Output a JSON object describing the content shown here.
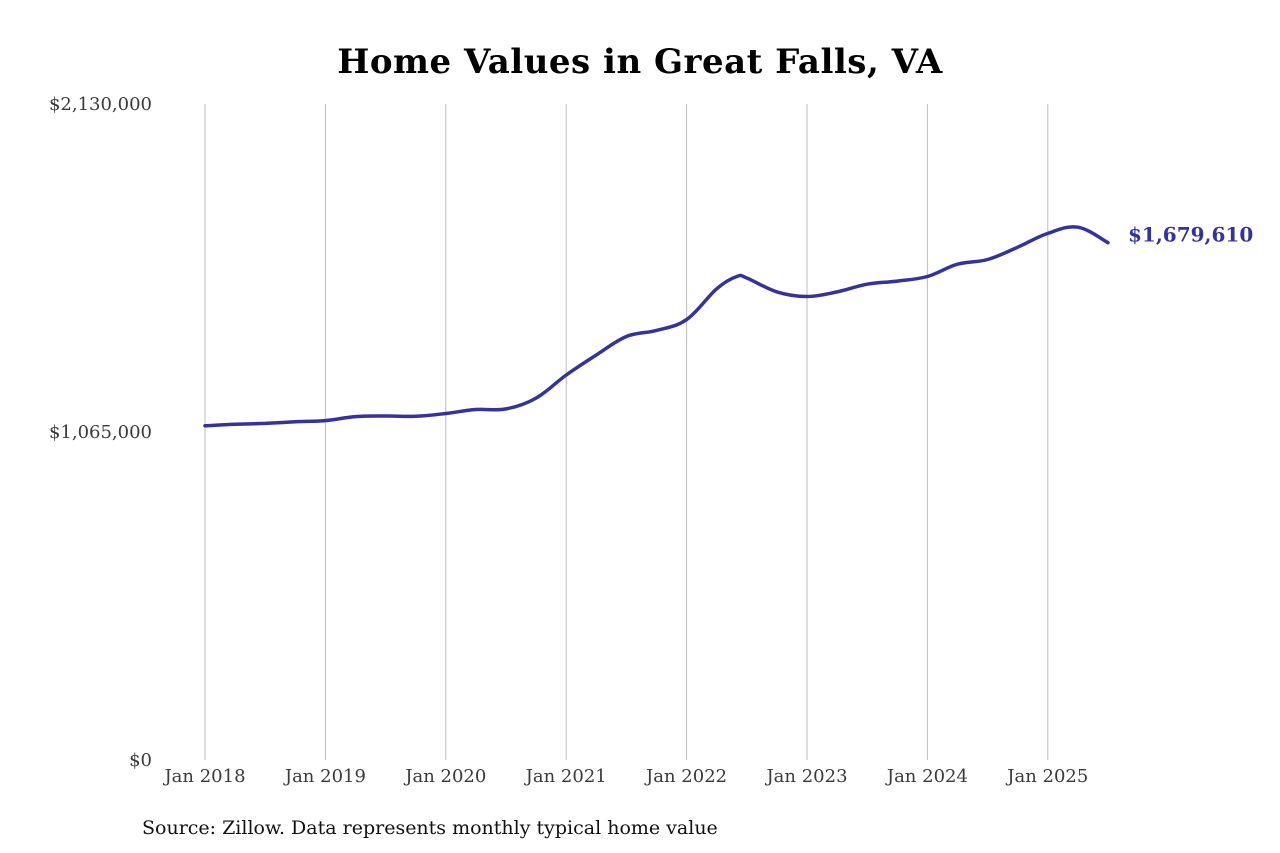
{
  "title": "Home Values in Great Falls, VA",
  "source": "Source: Zillow. Data represents monthly typical home value",
  "colors": {
    "line": "#35339b",
    "grid": "#bdbdbd",
    "axis_text": "#3a3a3a",
    "title": "#000000"
  },
  "chart_data": {
    "type": "line",
    "title": "Home Values in Great Falls, VA",
    "xlabel": "",
    "ylabel": "",
    "ylim": [
      0,
      2130000
    ],
    "y_ticks": [
      0,
      1065000,
      2130000
    ],
    "y_tick_labels": [
      "$0",
      "$1,065,000",
      "$2,130,000"
    ],
    "x_ticks": [
      "2018-01",
      "2019-01",
      "2020-01",
      "2021-01",
      "2022-01",
      "2023-01",
      "2024-01",
      "2025-01"
    ],
    "x_tick_labels": [
      "Jan 2018",
      "Jan 2019",
      "Jan 2020",
      "Jan 2021",
      "Jan 2022",
      "Jan 2023",
      "Jan 2024",
      "Jan 2025"
    ],
    "grid": "vertical",
    "end_label": "$1,679,610",
    "series": [
      {
        "x": [
          "2018-01",
          "2018-04",
          "2018-07",
          "2018-10",
          "2019-01",
          "2019-04",
          "2019-07",
          "2019-10",
          "2020-01",
          "2020-04",
          "2020-07",
          "2020-10",
          "2021-01",
          "2021-04",
          "2021-07",
          "2021-10",
          "2022-01",
          "2022-04",
          "2022-06",
          "2022-07",
          "2022-10",
          "2023-01",
          "2023-04",
          "2023-07",
          "2023-10",
          "2024-01",
          "2024-04",
          "2024-07",
          "2024-10",
          "2025-01",
          "2025-04",
          "2025-07"
        ],
        "values": [
          1085000,
          1090000,
          1093000,
          1098000,
          1102000,
          1115000,
          1117000,
          1116000,
          1125000,
          1138000,
          1140000,
          1175000,
          1250000,
          1315000,
          1375000,
          1395000,
          1430000,
          1530000,
          1570000,
          1565000,
          1520000,
          1505000,
          1520000,
          1545000,
          1555000,
          1570000,
          1610000,
          1625000,
          1665000,
          1710000,
          1730000,
          1679610
        ]
      }
    ]
  }
}
